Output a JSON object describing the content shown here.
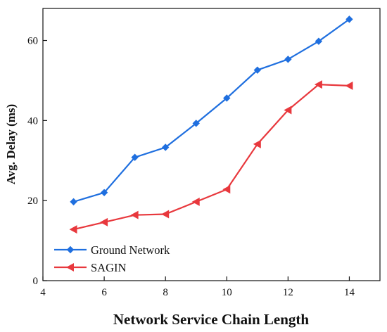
{
  "chart_data": {
    "type": "line",
    "title": "",
    "xlabel": "Network Service Chain Length",
    "ylabel": "Avg. Delay (ms)",
    "xlim": [
      4,
      15
    ],
    "ylim": [
      0,
      68
    ],
    "xticks": [
      4,
      6,
      8,
      10,
      12,
      14
    ],
    "yticks": [
      0,
      20,
      40,
      60
    ],
    "x": [
      5,
      6,
      7,
      8,
      9,
      10,
      11,
      12,
      13,
      14
    ],
    "series": [
      {
        "name": "Ground Network",
        "values": [
          19.7,
          22.0,
          30.8,
          33.3,
          39.3,
          45.6,
          52.6,
          55.3,
          59.8,
          65.3
        ],
        "color": "#1f6fdf",
        "marker": "diamond"
      },
      {
        "name": "SAGIN",
        "values": [
          12.8,
          14.6,
          16.4,
          16.6,
          19.7,
          22.8,
          34.1,
          42.6,
          49.0,
          48.7
        ],
        "color": "#e8383d",
        "marker": "triangle-left"
      }
    ],
    "grid": false,
    "legend_position": "bottom-left"
  }
}
